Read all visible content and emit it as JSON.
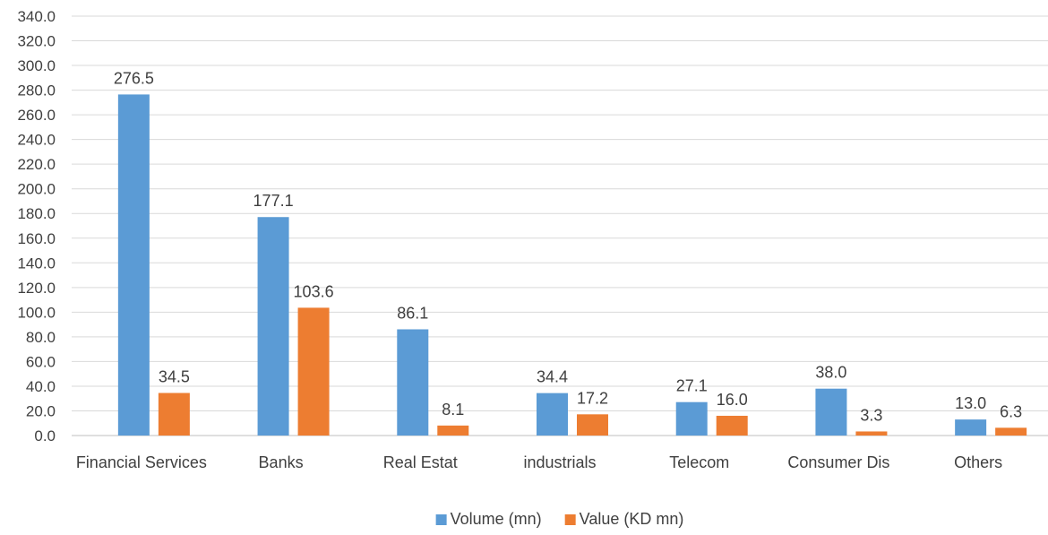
{
  "chart_data": {
    "type": "bar",
    "title": "",
    "xlabel": "",
    "ylabel": "",
    "categories": [
      "Financial Services",
      "Banks",
      "Real Estat",
      "industrials",
      "Telecom",
      "Consumer Dis",
      "Others"
    ],
    "series": [
      {
        "name": "Volume (mn)",
        "color": "#5B9BD5",
        "values": [
          276.5,
          177.1,
          86.1,
          34.4,
          27.1,
          38.0,
          13.0
        ]
      },
      {
        "name": "Value (KD mn)",
        "color": "#ED7D31",
        "values": [
          34.5,
          103.6,
          8.1,
          17.2,
          16.0,
          3.3,
          6.3
        ]
      }
    ],
    "ylim": [
      0,
      340
    ],
    "ytick_step": 20,
    "ytick_decimals": 1,
    "grid": true,
    "legend_position": "bottom-center",
    "data_labels": true
  }
}
